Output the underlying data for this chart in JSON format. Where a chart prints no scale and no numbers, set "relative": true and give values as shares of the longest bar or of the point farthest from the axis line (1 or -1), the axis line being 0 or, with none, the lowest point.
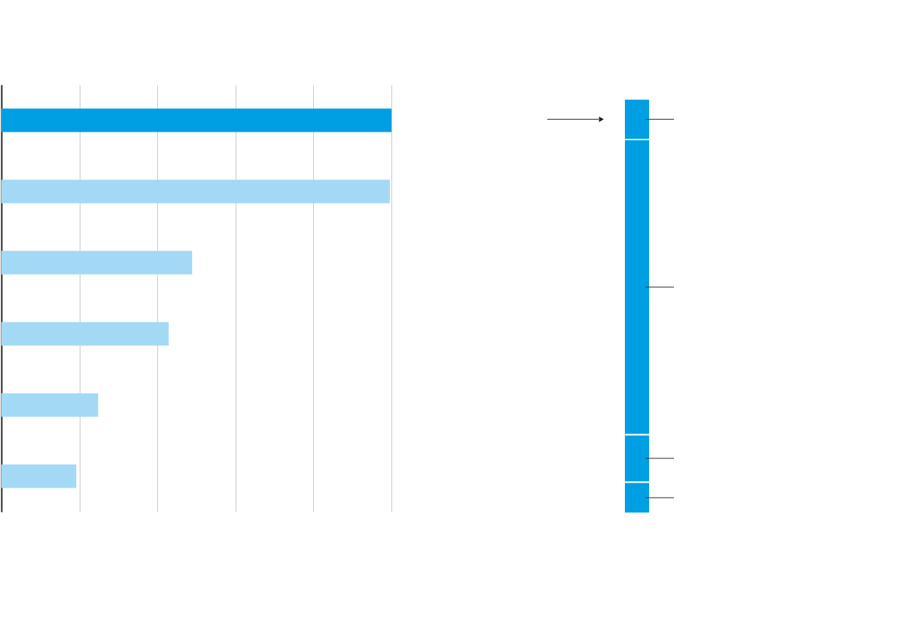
{
  "chart_data": [
    {
      "type": "bar",
      "orientation": "horizontal",
      "relative": true,
      "categories": [
        null,
        null,
        null,
        null,
        null,
        null
      ],
      "values": [
        1,
        0.996,
        0.489,
        0.429,
        0.248,
        0.192
      ],
      "colors": [
        "#009fe3",
        "#a3d9f5",
        "#a3d9f5",
        "#a3d9f5",
        "#a3d9f5",
        "#a3d9f5"
      ],
      "grid": "x"
    },
    {
      "type": "bar",
      "stacked": true,
      "relative": true,
      "categories": [
        null
      ],
      "series": [
        {
          "color": "#009fe3",
          "values": [
            0.075
          ]
        },
        {
          "color": "#009fe3",
          "values": [
            0.115
          ]
        },
        {
          "color": "#009fe3",
          "values": [
            0.712
          ]
        },
        {
          "color": "#009fe3",
          "values": [
            0.098
          ]
        }
      ]
    }
  ]
}
